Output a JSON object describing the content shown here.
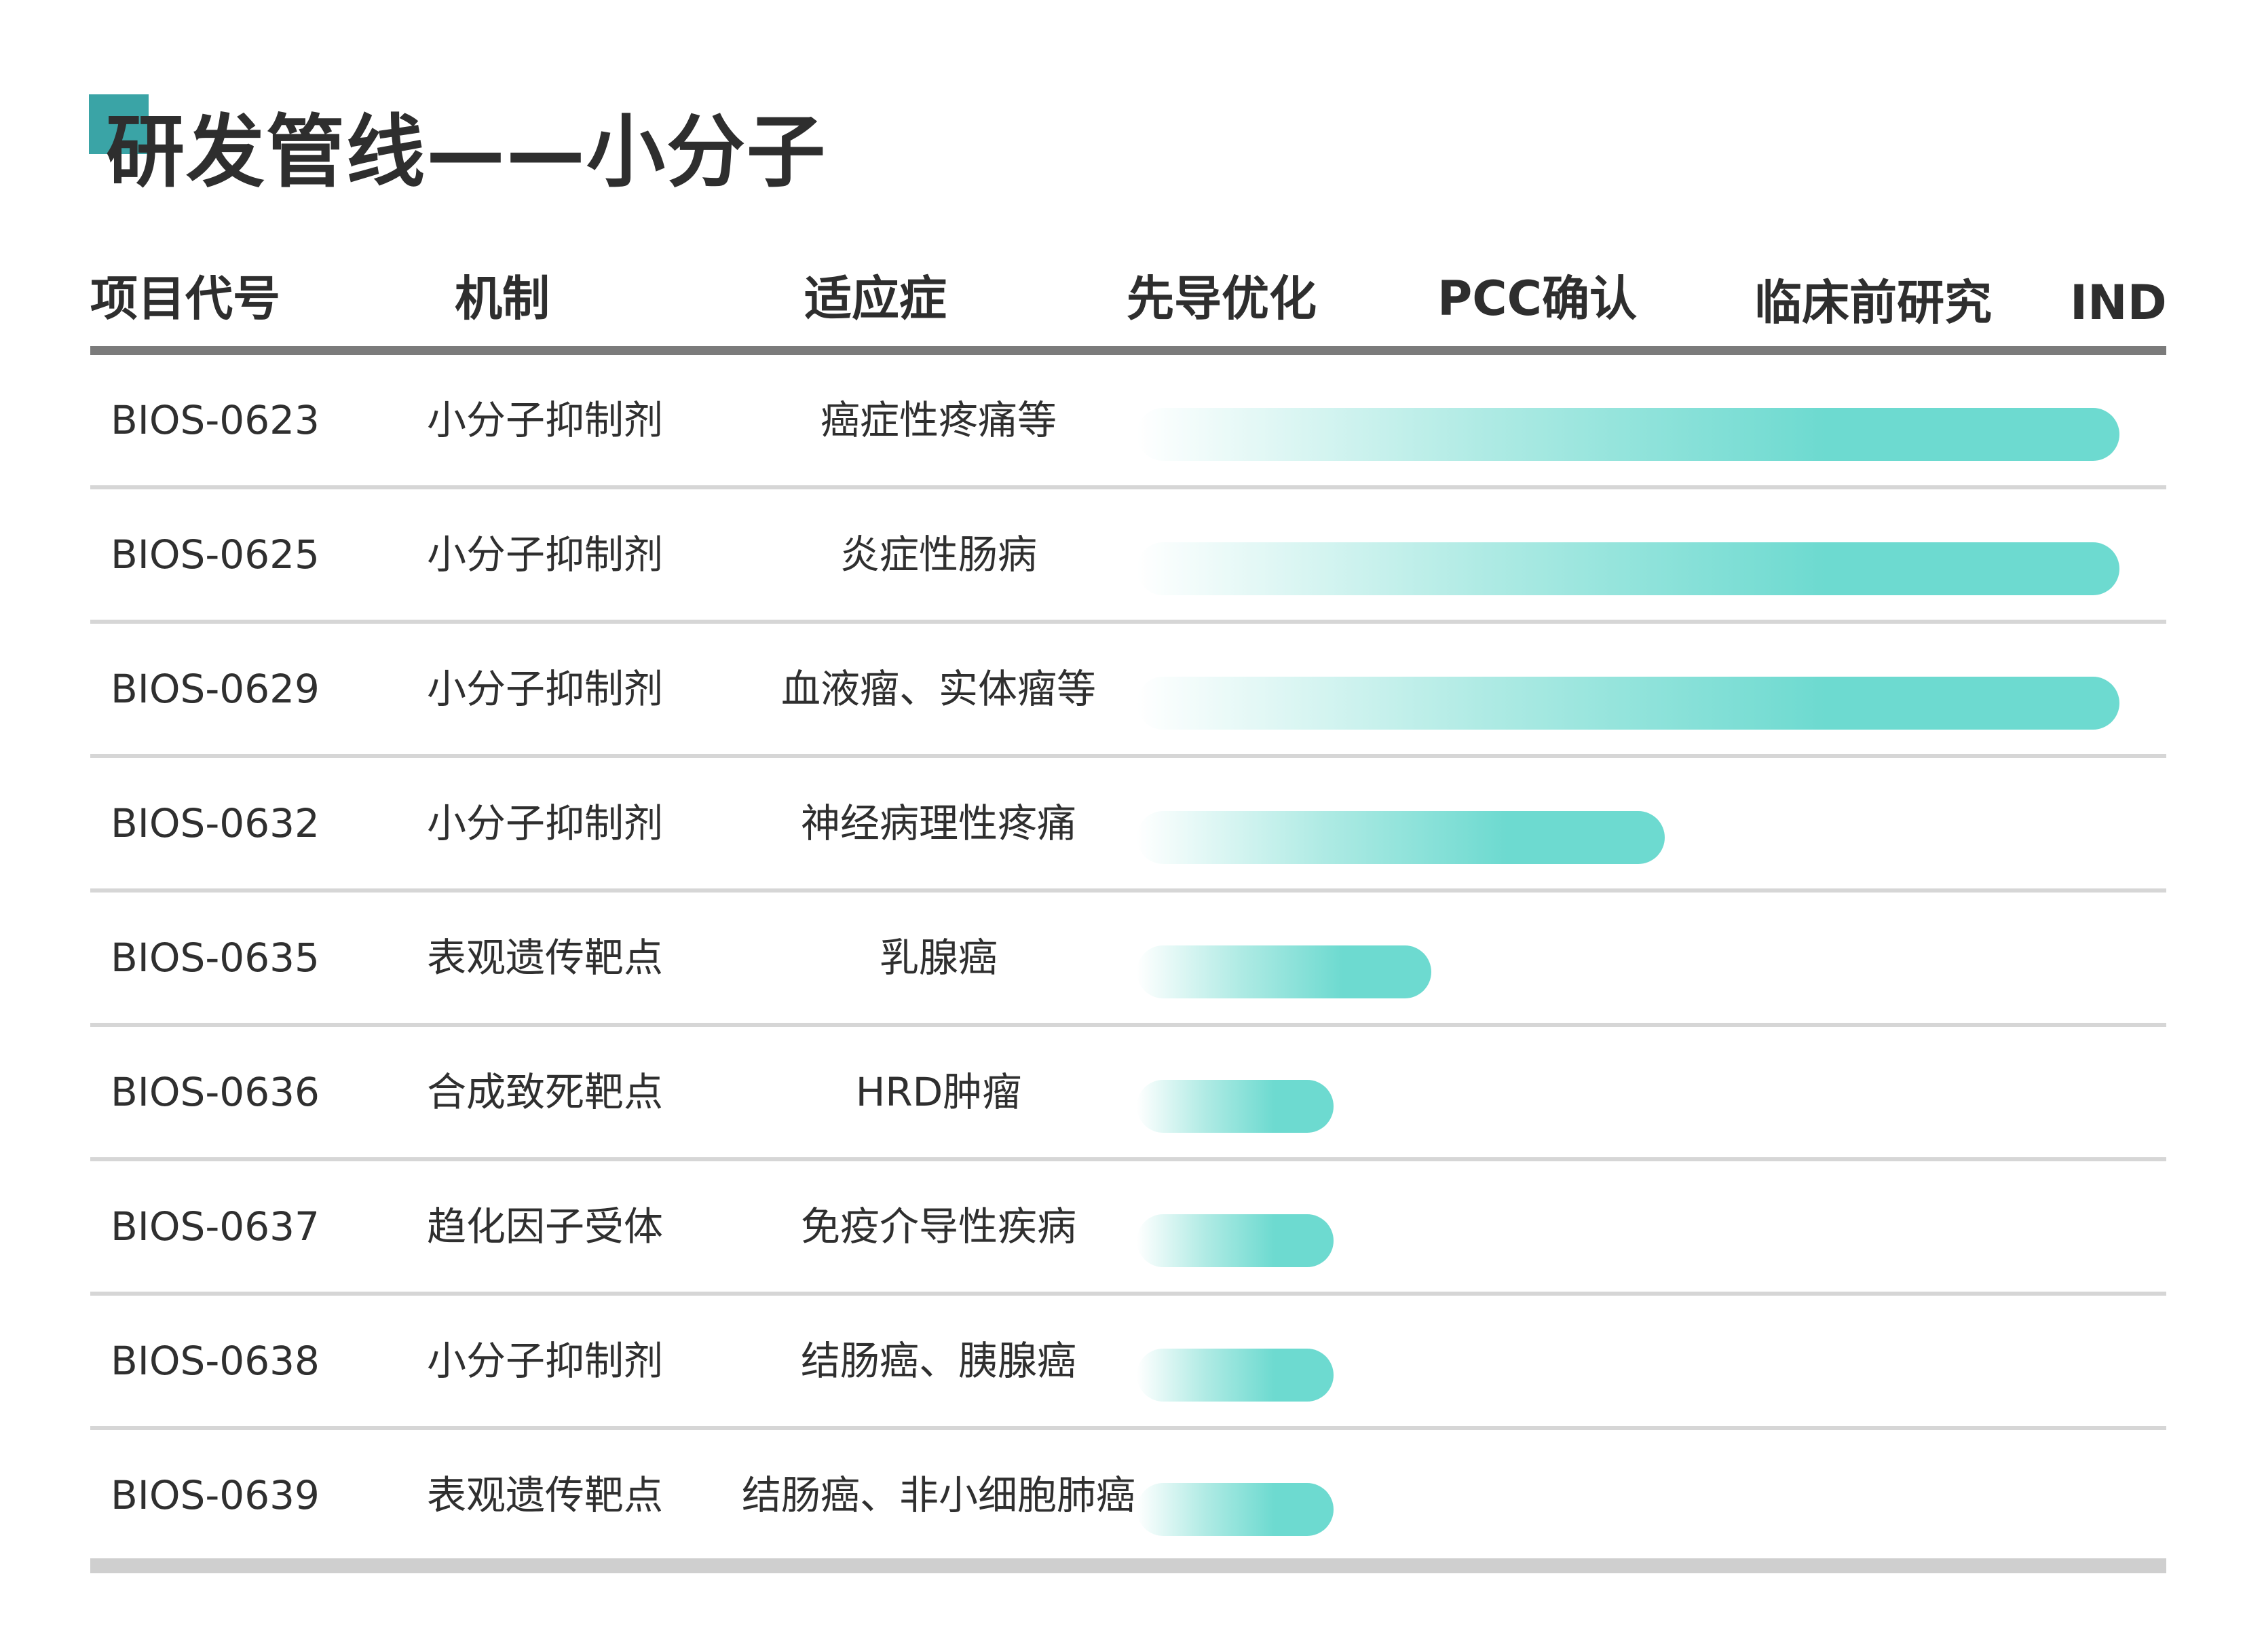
{
  "title": "研发管线——小分子",
  "headers": [
    "项目代号",
    "机制",
    "适应症",
    "先导优化",
    "PCC确认",
    "临床前研究",
    "IND"
  ],
  "colors": {
    "accent": "#3aa4a6",
    "bar": "#6ddad0",
    "header_rule": "#7b7b7b",
    "row_rule": "#d6d6d6"
  },
  "stages": [
    "先导优化",
    "PCC确认",
    "临床前研究",
    "IND"
  ],
  "rows": [
    {
      "code": "BIOS-0623",
      "mechanism": "小分子抑制剂",
      "indication": "癌症性疼痛等",
      "progress_stage": "临床前研究",
      "progress_fraction": 0.8
    },
    {
      "code": "BIOS-0625",
      "mechanism": "小分子抑制剂",
      "indication": "炎症性肠病",
      "progress_stage": "临床前研究",
      "progress_fraction": 0.8
    },
    {
      "code": "BIOS-0629",
      "mechanism": "小分子抑制剂",
      "indication": "血液瘤、实体瘤等",
      "progress_stage": "临床前研究",
      "progress_fraction": 0.8
    },
    {
      "code": "BIOS-0632",
      "mechanism": "小分子抑制剂",
      "indication": "神经病理性疼痛",
      "progress_stage": "PCC确认",
      "progress_fraction": 0.43
    },
    {
      "code": "BIOS-0635",
      "mechanism": "表观遗传靶点",
      "indication": "乳腺癌",
      "progress_stage": "先导优化",
      "progress_fraction": 0.24
    },
    {
      "code": "BIOS-0636",
      "mechanism": "合成致死靶点",
      "indication": "HRD肿瘤",
      "progress_stage": "先导优化",
      "progress_fraction": 0.16
    },
    {
      "code": "BIOS-0637",
      "mechanism": "趋化因子受体",
      "indication": "免疫介导性疾病",
      "progress_stage": "先导优化",
      "progress_fraction": 0.16
    },
    {
      "code": "BIOS-0638",
      "mechanism": "小分子抑制剂",
      "indication": "结肠癌、胰腺癌",
      "progress_stage": "先导优化",
      "progress_fraction": 0.16
    },
    {
      "code": "BIOS-0639",
      "mechanism": "表观遗传靶点",
      "indication": "结肠癌、非小细胞肺癌",
      "progress_stage": "先导优化",
      "progress_fraction": 0.16
    }
  ]
}
